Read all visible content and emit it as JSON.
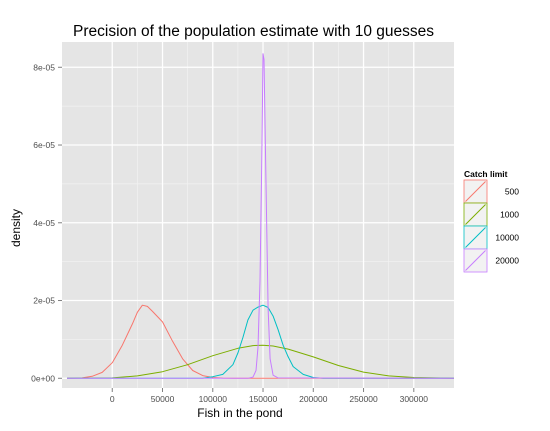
{
  "chart_data": {
    "type": "line",
    "title": "Precision of the population estimate with 10 guesses",
    "xlabel": "Fish in the pond",
    "ylabel": "density",
    "xlim": [
      -50000,
      340000
    ],
    "ylim": [
      -2.5e-06,
      8.65e-05
    ],
    "x_ticks": [
      0,
      50000,
      100000,
      150000,
      200000,
      250000,
      300000
    ],
    "x_tick_labels": [
      "0",
      "50000",
      "100000",
      "150000",
      "200000",
      "250000",
      "300000"
    ],
    "y_ticks": [
      0,
      2e-05,
      4e-05,
      6e-05,
      8e-05
    ],
    "y_tick_labels": [
      "0e+00",
      "2e-05",
      "4e-05",
      "6e-05",
      "8e-05"
    ],
    "grid": true,
    "background": "#e5e5e5",
    "legend": {
      "title": "Catch limit",
      "position": "right",
      "entries": [
        "500",
        "1000",
        "10000",
        "20000"
      ]
    },
    "series": [
      {
        "name": "500",
        "color": "#f8766d",
        "x": [
          -45000,
          -30000,
          -20000,
          -10000,
          0,
          10000,
          20000,
          25000,
          30000,
          35000,
          40000,
          50000,
          60000,
          70000,
          80000,
          90000,
          100000,
          110000,
          120000,
          340000
        ],
        "y": [
          0,
          1e-07,
          5e-07,
          1.5e-06,
          4e-06,
          8.5e-06,
          1.4e-05,
          1.7e-05,
          1.88e-05,
          1.85e-05,
          1.72e-05,
          1.45e-05,
          9.5e-06,
          5e-06,
          2e-06,
          7e-07,
          2e-07,
          5e-08,
          0,
          0
        ]
      },
      {
        "name": "1000",
        "color": "#7cae00",
        "x": [
          -45000,
          0,
          25000,
          50000,
          75000,
          100000,
          125000,
          140000,
          150000,
          160000,
          175000,
          200000,
          225000,
          250000,
          275000,
          300000,
          340000
        ],
        "y": [
          0,
          1e-07,
          6e-07,
          1.7e-06,
          3.5e-06,
          5.8e-06,
          7.7e-06,
          8.4e-06,
          8.5e-06,
          8.3e-06,
          7.5e-06,
          5.5e-06,
          3.3e-06,
          1.6e-06,
          6e-07,
          2e-07,
          0
        ]
      },
      {
        "name": "10000",
        "color": "#00bfc4",
        "x": [
          -45000,
          90000,
          100000,
          110000,
          120000,
          125000,
          130000,
          135000,
          140000,
          145000,
          150000,
          155000,
          160000,
          165000,
          170000,
          175000,
          180000,
          190000,
          200000,
          210000,
          340000
        ],
        "y": [
          0,
          0,
          4e-07,
          1e-06,
          3.5e-06,
          6.5e-06,
          1.05e-05,
          1.5e-05,
          1.75e-05,
          1.83e-05,
          1.88e-05,
          1.82e-05,
          1.6e-05,
          1.25e-05,
          8.5e-06,
          5.5e-06,
          3e-06,
          1e-06,
          2e-07,
          0,
          0
        ]
      },
      {
        "name": "20000",
        "color": "#c77cff",
        "x": [
          -45000,
          135000,
          140000,
          143000,
          145000,
          147000,
          149000,
          150000,
          151000,
          153000,
          155000,
          157000,
          160000,
          165000,
          340000
        ],
        "y": [
          0,
          0,
          3e-07,
          2e-06,
          8e-06,
          2.5e-05,
          6e-05,
          8.35e-05,
          8.2e-05,
          5e-05,
          1.8e-05,
          5e-06,
          8e-07,
          1e-07,
          0
        ]
      }
    ]
  }
}
